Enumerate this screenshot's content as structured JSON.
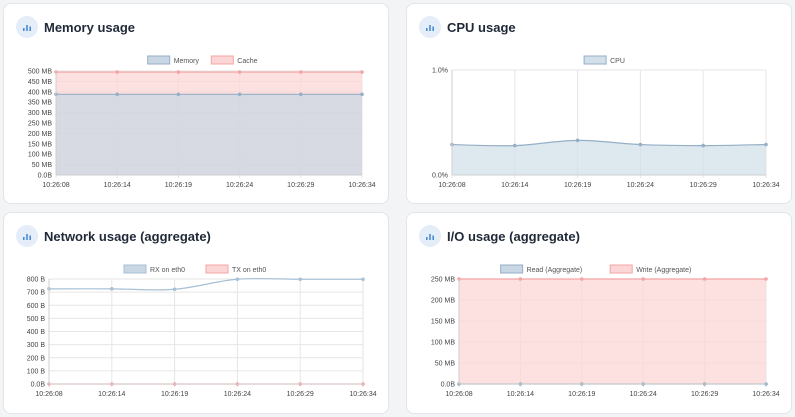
{
  "panels": [
    {
      "title": "Memory usage",
      "icon": "bar-chart-icon",
      "chart_data": {
        "type": "area",
        "x": [
          "10:26:08",
          "10:26:14",
          "10:26:19",
          "10:26:24",
          "10:26:29",
          "10:26:34"
        ],
        "yticks": [
          "0.0B",
          "50 MB",
          "100 MB",
          "150 MB",
          "200 MB",
          "250 MB",
          "300 MB",
          "350 MB",
          "400 MB",
          "450 MB",
          "500 MB"
        ],
        "ylim": [
          0,
          500
        ],
        "legend_position": "top-center",
        "grid": true,
        "series": [
          {
            "name": "Memory",
            "values": [
              388,
              388,
              388,
              388,
              388,
              388
            ],
            "color": "#c9d7e4",
            "line": "#95afc6"
          },
          {
            "name": "Cache",
            "values": [
              495,
              495,
              495,
              495,
              495,
              495
            ],
            "color": "#fcd6d6",
            "line": "#f4a4a4"
          }
        ]
      }
    },
    {
      "title": "CPU usage",
      "icon": "bar-chart-icon",
      "chart_data": {
        "type": "area",
        "x": [
          "10:26:08",
          "10:26:14",
          "10:26:19",
          "10:26:24",
          "10:26:29",
          "10:26:34"
        ],
        "yticks": [
          "0.0%",
          "1.0%"
        ],
        "ylim": [
          0,
          1
        ],
        "legend_position": "top-center",
        "grid": true,
        "series": [
          {
            "name": "CPU",
            "values": [
              0.29,
              0.28,
              0.33,
              0.29,
              0.28,
              0.29
            ],
            "color": "#d3e0ea",
            "line": "#95afc6"
          }
        ]
      }
    },
    {
      "title": "Network usage (aggregate)",
      "icon": "bar-chart-icon",
      "chart_data": {
        "type": "line",
        "x": [
          "10:26:08",
          "10:26:14",
          "10:26:19",
          "10:26:24",
          "10:26:29",
          "10:26:34"
        ],
        "yticks": [
          "0.0B",
          "100 B",
          "200 B",
          "300 B",
          "400 B",
          "500 B",
          "600 B",
          "700 B",
          "800 B"
        ],
        "ylim": [
          0,
          800
        ],
        "legend_position": "top-center",
        "grid": true,
        "series": [
          {
            "name": "RX on eth0",
            "values": [
              725,
              725,
              722,
              798,
              798,
              798
            ],
            "color": "#c9d7e4",
            "line": "#a7c0d6"
          },
          {
            "name": "TX on eth0",
            "values": [
              0,
              0,
              0,
              0,
              0,
              0
            ],
            "color": "#fcd6d6",
            "line": "#f4a4a4"
          }
        ]
      }
    },
    {
      "title": "I/O usage (aggregate)",
      "icon": "bar-chart-icon",
      "chart_data": {
        "type": "area",
        "x": [
          "10:26:08",
          "10:26:14",
          "10:26:19",
          "10:26:24",
          "10:26:29",
          "10:26:34"
        ],
        "yticks": [
          "0.0B",
          "50 MB",
          "100 MB",
          "150 MB",
          "200 MB",
          "250 MB"
        ],
        "ylim": [
          0,
          250
        ],
        "legend_position": "top-center",
        "grid": true,
        "series": [
          {
            "name": "Read (Aggregate)",
            "values": [
              0,
              0,
              0,
              0,
              0,
              0
            ],
            "color": "#c9d7e4",
            "line": "#95afc6"
          },
          {
            "name": "Write (Aggregate)",
            "values": [
              250,
              250,
              250,
              250,
              250,
              250
            ],
            "color": "#fcd6d6",
            "line": "#f4a4a4"
          }
        ]
      }
    }
  ]
}
